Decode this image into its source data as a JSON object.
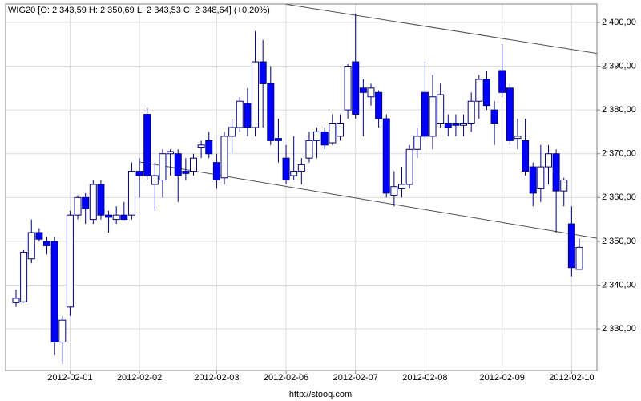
{
  "chart_data": {
    "type": "candlestick",
    "title": "WIG20 [O: 2 343,59  H: 2 350,69  L: 2 343,53  C: 2 348,64] (+0,20%)",
    "source": "http://stooq.com",
    "categories": [
      null,
      null,
      null,
      null,
      null,
      null,
      null,
      "2012-02-01",
      null,
      null,
      null,
      null,
      null,
      null,
      null,
      null,
      "2012-02-02",
      null,
      null,
      null,
      null,
      null,
      null,
      null,
      null,
      null,
      "2012-02-03",
      null,
      null,
      null,
      null,
      null,
      null,
      null,
      null,
      "2012-02-06",
      null,
      null,
      null,
      null,
      null,
      null,
      null,
      null,
      "2012-02-07",
      null,
      null,
      null,
      null,
      null,
      null,
      null,
      null,
      "2012-02-08",
      null,
      null,
      null,
      null,
      null,
      null,
      null,
      null,
      null,
      "2012-02-09",
      null,
      null,
      null,
      null,
      null,
      null,
      null,
      null,
      "2012-02-10",
      null
    ],
    "open": [
      2336,
      2336.2,
      2346,
      2352,
      2350,
      2350,
      2327,
      2335,
      2356,
      2360,
      2355,
      2363,
      2356,
      2355,
      2356,
      2356,
      2366,
      2379,
      2363,
      2364,
      2370,
      2370,
      2366,
      2366,
      2371.5,
      2373,
      2368,
      2364.5,
      2374,
      2376,
      2381.5,
      2376,
      2391,
      2386,
      2373.5,
      2369,
      2365,
      2366,
      2369,
      2373,
      2375,
      2372.5,
      2374,
      2380,
      2391,
      2385,
      2383,
      2384,
      2378,
      2360.5,
      2362,
      2363,
      2371,
      2384,
      2374,
      2377,
      2377,
      2377,
      2376.5,
      2377,
      2382,
      2387,
      2380,
      2389,
      2385,
      2373.5,
      2373,
      2367,
      2362,
      2367,
      2370,
      2361.5,
      2354,
      2343.59
    ],
    "high": [
      2339,
      2348,
      2355,
      2353,
      2351,
      2351,
      2333,
      2357,
      2360.5,
      2361,
      2364,
      2364,
      2357,
      2358,
      2359,
      2368,
      2369,
      2380.5,
      2368,
      2371,
      2371,
      2371,
      2369,
      2370,
      2373,
      2375,
      2370,
      2375,
      2378,
      2383,
      2385,
      2398,
      2396,
      2390,
      2378,
      2372,
      2374,
      2369,
      2375,
      2376,
      2376,
      2379,
      2379,
      2390.5,
      2402,
      2387,
      2386,
      2384.5,
      2379,
      2366,
      2367,
      2372,
      2376,
      2391,
      2388,
      2386,
      2379,
      2379,
      2379,
      2384,
      2388,
      2389,
      2382,
      2395,
      2386,
      2378,
      2378,
      2368,
      2372,
      2372,
      2371,
      2364.5,
      2358,
      2350.69
    ],
    "low": [
      2335,
      2336,
      2345,
      2350,
      2347,
      2324,
      2322,
      2333,
      2355,
      2354,
      2354,
      2355,
      2352,
      2354,
      2355,
      2355,
      2360,
      2364,
      2357,
      2360,
      2365,
      2359,
      2364,
      2365,
      2369,
      2369,
      2362,
      2363,
      2370,
      2375,
      2374,
      2374,
      2376,
      2372,
      2368,
      2363,
      2364,
      2363,
      2368,
      2369,
      2371,
      2372,
      2373,
      2378,
      2378,
      2374,
      2381,
      2376,
      2360,
      2358,
      2360,
      2362,
      2369,
      2373,
      2371,
      2376,
      2374,
      2374,
      2374,
      2375,
      2378,
      2380,
      2372,
      2383,
      2372,
      2371,
      2365,
      2358,
      2359,
      2363,
      2352,
      2358,
      2342,
      2343.53
    ],
    "close": [
      2337,
      2347.5,
      2352,
      2350.5,
      2349,
      2327,
      2332,
      2356,
      2360,
      2357.5,
      2363,
      2356,
      2355.5,
      2356,
      2355,
      2366,
      2365,
      2365,
      2365,
      2370,
      2370.5,
      2365,
      2365.5,
      2369,
      2372,
      2370,
      2364,
      2374,
      2376,
      2382,
      2376,
      2391,
      2386,
      2373,
      2373,
      2364,
      2366,
      2367.5,
      2373,
      2375,
      2372,
      2377,
      2377,
      2390,
      2379,
      2384,
      2385,
      2378,
      2361,
      2362.5,
      2363,
      2371,
      2374,
      2374,
      2383,
      2383.5,
      2376,
      2376.5,
      2377,
      2382,
      2387,
      2381,
      2377,
      2384,
      2373,
      2374,
      2366,
      2361,
      2367,
      2370,
      2361.5,
      2364,
      2344,
      2348.64
    ],
    "up_color": "#ffffff",
    "down_color": "#0000ff",
    "ylim": [
      2320.5,
      2404.2
    ],
    "yticks": [
      {
        "value": 2330,
        "label": "2 330,00"
      },
      {
        "value": 2340,
        "label": "2 340,00"
      },
      {
        "value": 2350,
        "label": "2 350,00"
      },
      {
        "value": 2360,
        "label": "2 360,00"
      },
      {
        "value": 2370,
        "label": "2 370,00"
      },
      {
        "value": 2380,
        "label": "2 380,00"
      },
      {
        "value": 2390,
        "label": "2 390,00"
      },
      {
        "value": 2400,
        "label": "2 400,00"
      }
    ],
    "trendlines": [
      {
        "x": [
          34.8,
          75.3
        ],
        "y": [
          2404.2,
          2392.9
        ]
      },
      {
        "x": [
          16.1,
          75.3
        ],
        "y": [
          2368.1,
          2350.7
        ]
      }
    ],
    "grid": true
  }
}
